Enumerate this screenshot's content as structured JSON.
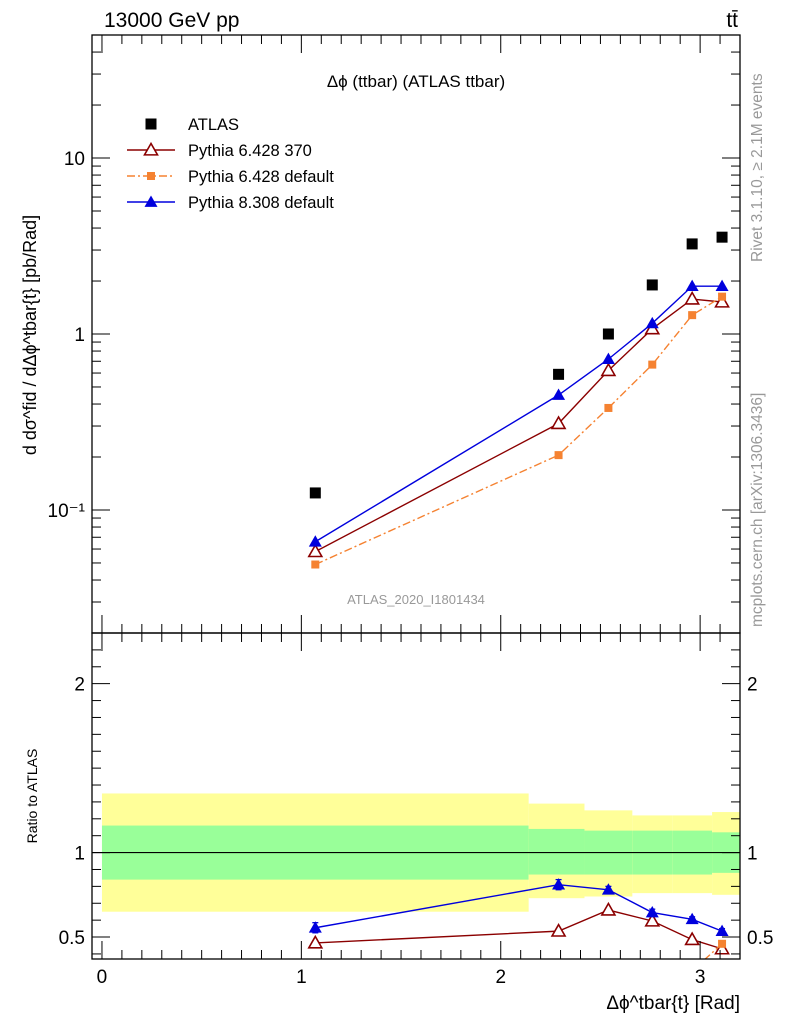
{
  "header": {
    "energy_label": "13000 GeV pp",
    "process_label": "tt̄"
  },
  "side_labels": {
    "rivet": "Rivet 3.1.10, ≥ 2.1M events",
    "source": "mcplots.cern.ch [arXiv:1306.3436]"
  },
  "analysis_tag": "ATLAS_2020_I1801434",
  "colors": {
    "atlas": "#000000",
    "pythia6_370": "#8b0000",
    "pythia6_default": "#f58231",
    "pythia8": "#0000dd",
    "band_inner": "#99ff99",
    "band_outer": "#ffff99"
  },
  "chart_data": [
    {
      "type": "scatter",
      "title": "Δϕ (ttbar) (ATLAS ttbar)",
      "ylabel": "d dσ^fid / dΔϕ^tbar{t} [pb/Rad]",
      "yscale": "log",
      "ylim": [
        0.02,
        50
      ],
      "xlim": [
        -0.05,
        3.2
      ],
      "y_ticks": [
        {
          "value": 0.1,
          "label": "10⁻¹"
        },
        {
          "value": 1,
          "label": "1"
        },
        {
          "value": 10,
          "label": "10"
        }
      ],
      "legend_position": "top-left",
      "series": [
        {
          "name": "ATLAS",
          "style": "marker-square",
          "x": [
            1.07,
            2.29,
            2.54,
            2.76,
            2.96,
            3.11
          ],
          "y": [
            0.125,
            0.59,
            1.0,
            1.9,
            3.25,
            3.55
          ]
        },
        {
          "name": "Pythia 6.428 370",
          "style": "line-open-triangle",
          "x": [
            1.07,
            2.29,
            2.54,
            2.76,
            2.96,
            3.11
          ],
          "y": [
            0.058,
            0.31,
            0.62,
            1.07,
            1.58,
            1.52
          ]
        },
        {
          "name": "Pythia 6.428 default",
          "style": "dashdot-square",
          "x": [
            1.07,
            2.29,
            2.54,
            2.76,
            2.96,
            3.11
          ],
          "y": [
            0.049,
            0.205,
            0.38,
            0.67,
            1.28,
            1.63
          ]
        },
        {
          "name": "Pythia 8.308 default",
          "style": "line-filled-triangle",
          "x": [
            1.07,
            2.29,
            2.54,
            2.76,
            2.96,
            3.11
          ],
          "y": [
            0.066,
            0.45,
            0.72,
            1.15,
            1.87,
            1.87
          ]
        }
      ]
    },
    {
      "type": "line",
      "ylabel": "Ratio to ATLAS",
      "xlabel": "Δϕ^tbar{t} [Rad]",
      "xlim": [
        -0.05,
        3.2
      ],
      "ylim": [
        0.37,
        2.3
      ],
      "x_ticks": [
        0,
        1,
        2,
        3
      ],
      "y_ticks": [
        0.5,
        1,
        2
      ],
      "reference_line": 1,
      "bands": {
        "x_edges": [
          0.0,
          2.14,
          2.42,
          2.66,
          2.86,
          3.06,
          3.2
        ],
        "inner_low": [
          0.84,
          0.87,
          0.87,
          0.87,
          0.87,
          0.88
        ],
        "inner_high": [
          1.16,
          1.14,
          1.13,
          1.13,
          1.13,
          1.12
        ],
        "outer_low": [
          0.65,
          0.73,
          0.74,
          0.76,
          0.76,
          0.75
        ],
        "outer_high": [
          1.35,
          1.29,
          1.25,
          1.22,
          1.22,
          1.24
        ]
      },
      "series": [
        {
          "name": "Pythia 6.428 370",
          "style": "line-open-triangle",
          "x": [
            1.07,
            2.29,
            2.54,
            2.76,
            2.96,
            3.11
          ],
          "y": [
            0.465,
            0.535,
            0.66,
            0.595,
            0.485,
            0.43
          ]
        },
        {
          "name": "Pythia 6.428 default",
          "style": "dashdot-square",
          "x": [
            2.96,
            3.11
          ],
          "y": [
            0.3,
            0.46
          ]
        },
        {
          "name": "Pythia 8.308 default",
          "style": "line-filled-triangle",
          "x": [
            1.07,
            2.29,
            2.54,
            2.76,
            2.96,
            3.11
          ],
          "y": [
            0.555,
            0.81,
            0.78,
            0.645,
            0.605,
            0.535
          ],
          "yerr": [
            0.03,
            0.03,
            0.02,
            0.02,
            0.015,
            0.015
          ]
        }
      ]
    }
  ]
}
